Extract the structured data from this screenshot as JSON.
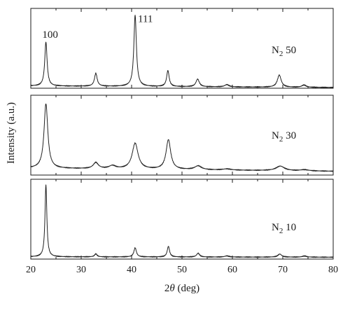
{
  "chart_data": {
    "type": "line",
    "xlabel_prefix": "2",
    "xlabel_theta": "θ",
    "xlabel_suffix": " (deg)",
    "ylabel": "Intensity (a.u.)",
    "xlim": [
      20,
      80
    ],
    "x_ticks": [
      "20",
      "30",
      "40",
      "50",
      "60",
      "70",
      "80"
    ],
    "series": [
      {
        "name": "N2 50",
        "label_main": "N",
        "label_sub": "2",
        "label_rest": " 50",
        "peak_labels": [
          {
            "text": "100",
            "x": 23.0
          },
          {
            "text": "111",
            "x": 40.7
          }
        ],
        "ylim": [
          0,
          105
        ],
        "baseline": [
          [
            20,
            3.0
          ],
          [
            80,
            1.0
          ]
        ],
        "peaks": [
          {
            "x": 23.0,
            "h": 58,
            "w": 0.28
          },
          {
            "x": 32.9,
            "h": 17,
            "w": 0.32
          },
          {
            "x": 40.7,
            "h": 94,
            "w": 0.3
          },
          {
            "x": 47.2,
            "h": 21,
            "w": 0.3
          },
          {
            "x": 53.1,
            "h": 10,
            "w": 0.4
          },
          {
            "x": 58.9,
            "h": 3,
            "w": 0.5
          },
          {
            "x": 69.3,
            "h": 16,
            "w": 0.45
          },
          {
            "x": 74.2,
            "h": 3,
            "w": 0.5
          }
        ]
      },
      {
        "name": "N2 30",
        "label_main": "N",
        "label_sub": "2",
        "label_rest": " 30",
        "peak_labels": [],
        "ylim": [
          0,
          105
        ],
        "baseline": [
          [
            20,
            9.0
          ],
          [
            80,
            5.0
          ]
        ],
        "peaks": [
          {
            "x": 23.0,
            "h": 85,
            "w": 0.45
          },
          {
            "x": 32.9,
            "h": 8,
            "w": 0.6
          },
          {
            "x": 36.2,
            "h": 4,
            "w": 0.8
          },
          {
            "x": 40.7,
            "h": 34,
            "w": 0.7
          },
          {
            "x": 47.3,
            "h": 39,
            "w": 0.55
          },
          {
            "x": 53.2,
            "h": 5,
            "w": 0.8
          },
          {
            "x": 58.9,
            "h": 1.5,
            "w": 1.0
          },
          {
            "x": 69.5,
            "h": 6,
            "w": 1.0
          },
          {
            "x": 74.3,
            "h": 1.5,
            "w": 1.0
          }
        ]
      },
      {
        "name": "N2 10",
        "label_main": "N",
        "label_sub": "2",
        "label_rest": " 10",
        "peak_labels": [],
        "ylim": [
          0,
          105
        ],
        "baseline": [
          [
            20,
            3.0
          ],
          [
            80,
            2.5
          ]
        ],
        "peaks": [
          {
            "x": 23.0,
            "h": 95,
            "w": 0.22
          },
          {
            "x": 32.9,
            "h": 4,
            "w": 0.3
          },
          {
            "x": 40.7,
            "h": 12,
            "w": 0.3
          },
          {
            "x": 47.3,
            "h": 14,
            "w": 0.28
          },
          {
            "x": 53.2,
            "h": 5,
            "w": 0.35
          },
          {
            "x": 58.9,
            "h": 1.5,
            "w": 0.5
          },
          {
            "x": 69.4,
            "h": 4,
            "w": 0.45
          },
          {
            "x": 74.3,
            "h": 1.5,
            "w": 0.5
          }
        ]
      }
    ]
  }
}
